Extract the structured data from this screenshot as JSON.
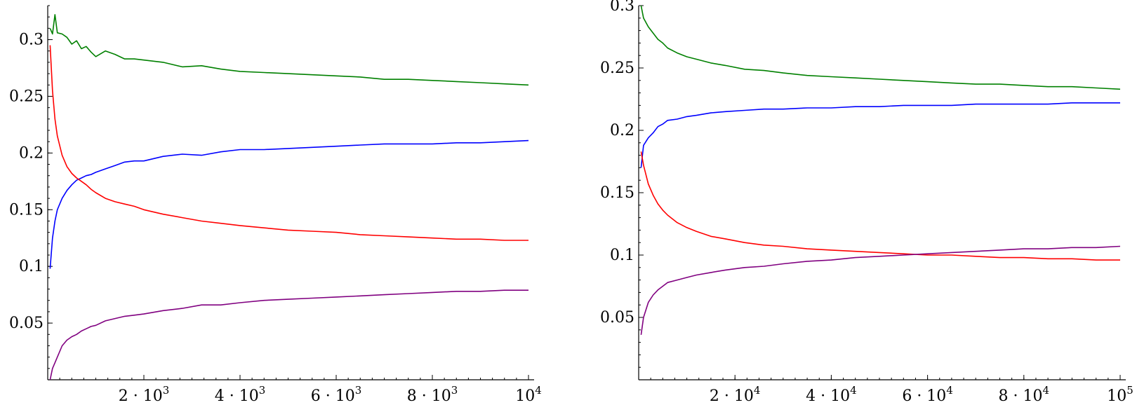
{
  "chart_data": [
    {
      "type": "line",
      "xlim": [
        0,
        10000
      ],
      "ylim": [
        0,
        0.33
      ],
      "x_ticks": [
        {
          "value": 2000,
          "mantissa": "2",
          "exp": "3"
        },
        {
          "value": 4000,
          "mantissa": "4",
          "exp": "3"
        },
        {
          "value": 6000,
          "mantissa": "6",
          "exp": "3"
        },
        {
          "value": 8000,
          "mantissa": "8",
          "exp": "3"
        },
        {
          "value": 10000,
          "mantissa": "",
          "exp": "4"
        }
      ],
      "y_ticks": [
        {
          "value": 0.05,
          "label": "0.05"
        },
        {
          "value": 0.1,
          "label": "0.1"
        },
        {
          "value": 0.15,
          "label": "0.15"
        },
        {
          "value": 0.2,
          "label": "0.2"
        },
        {
          "value": 0.25,
          "label": "0.25"
        },
        {
          "value": 0.3,
          "label": "0.3"
        }
      ],
      "series": [
        {
          "color": "#008000",
          "x": [
            50,
            100,
            150,
            200,
            300,
            400,
            500,
            600,
            700,
            800,
            900,
            1000,
            1200,
            1400,
            1600,
            1800,
            2000,
            2400,
            2800,
            3200,
            3600,
            4000,
            4500,
            5000,
            5500,
            6000,
            6500,
            7000,
            7500,
            8000,
            8500,
            9000,
            9500,
            10000
          ],
          "y": [
            0.31,
            0.305,
            0.322,
            0.306,
            0.305,
            0.302,
            0.296,
            0.299,
            0.292,
            0.294,
            0.289,
            0.285,
            0.29,
            0.287,
            0.283,
            0.283,
            0.282,
            0.28,
            0.276,
            0.277,
            0.274,
            0.272,
            0.271,
            0.27,
            0.269,
            0.268,
            0.267,
            0.265,
            0.265,
            0.264,
            0.263,
            0.262,
            0.261,
            0.26
          ]
        },
        {
          "color": "#0000ff",
          "x": [
            50,
            100,
            150,
            200,
            300,
            400,
            500,
            600,
            700,
            800,
            900,
            1000,
            1200,
            1400,
            1600,
            1800,
            2000,
            2400,
            2800,
            3200,
            3600,
            4000,
            4500,
            5000,
            5500,
            6000,
            6500,
            7000,
            7500,
            8000,
            8500,
            9000,
            9500,
            10000
          ],
          "y": [
            0.098,
            0.125,
            0.14,
            0.15,
            0.16,
            0.167,
            0.172,
            0.176,
            0.178,
            0.18,
            0.181,
            0.183,
            0.186,
            0.189,
            0.192,
            0.193,
            0.193,
            0.197,
            0.199,
            0.198,
            0.201,
            0.203,
            0.203,
            0.204,
            0.205,
            0.206,
            0.207,
            0.208,
            0.208,
            0.208,
            0.209,
            0.209,
            0.21,
            0.211
          ]
        },
        {
          "color": "#ff0000",
          "x": [
            50,
            100,
            150,
            200,
            300,
            400,
            500,
            600,
            700,
            800,
            900,
            1000,
            1200,
            1400,
            1600,
            1800,
            2000,
            2400,
            2800,
            3200,
            3600,
            4000,
            4500,
            5000,
            5500,
            6000,
            6500,
            7000,
            7500,
            8000,
            8500,
            9000,
            9500,
            10000
          ],
          "y": [
            0.295,
            0.255,
            0.23,
            0.215,
            0.198,
            0.188,
            0.182,
            0.178,
            0.175,
            0.172,
            0.168,
            0.165,
            0.16,
            0.157,
            0.155,
            0.153,
            0.15,
            0.146,
            0.143,
            0.14,
            0.138,
            0.136,
            0.134,
            0.132,
            0.131,
            0.13,
            0.128,
            0.127,
            0.126,
            0.125,
            0.124,
            0.124,
            0.123,
            0.123
          ]
        },
        {
          "color": "#800080",
          "x": [
            50,
            100,
            150,
            200,
            300,
            400,
            500,
            600,
            700,
            800,
            900,
            1000,
            1200,
            1400,
            1600,
            1800,
            2000,
            2400,
            2800,
            3200,
            3600,
            4000,
            4500,
            5000,
            5500,
            6000,
            6500,
            7000,
            7500,
            8000,
            8500,
            9000,
            9500,
            10000
          ],
          "y": [
            0.0,
            0.01,
            0.015,
            0.02,
            0.03,
            0.035,
            0.038,
            0.04,
            0.043,
            0.045,
            0.047,
            0.048,
            0.052,
            0.054,
            0.056,
            0.057,
            0.058,
            0.061,
            0.063,
            0.066,
            0.066,
            0.068,
            0.07,
            0.071,
            0.072,
            0.073,
            0.074,
            0.075,
            0.076,
            0.077,
            0.078,
            0.078,
            0.079,
            0.079
          ]
        }
      ]
    },
    {
      "type": "line",
      "xlim": [
        0,
        100000
      ],
      "ylim": [
        0,
        0.3
      ],
      "x_ticks": [
        {
          "value": 20000,
          "mantissa": "2",
          "exp": "4"
        },
        {
          "value": 40000,
          "mantissa": "4",
          "exp": "4"
        },
        {
          "value": 60000,
          "mantissa": "6",
          "exp": "4"
        },
        {
          "value": 80000,
          "mantissa": "8",
          "exp": "4"
        },
        {
          "value": 100000,
          "mantissa": "",
          "exp": "5"
        }
      ],
      "y_ticks": [
        {
          "value": 0.05,
          "label": "0.05"
        },
        {
          "value": 0.1,
          "label": "0.1"
        },
        {
          "value": 0.15,
          "label": "0.15"
        },
        {
          "value": 0.2,
          "label": "0.2"
        },
        {
          "value": 0.25,
          "label": "0.25"
        },
        {
          "value": 0.3,
          "label": "0.3"
        }
      ],
      "series": [
        {
          "color": "#008000",
          "x": [
            500,
            1000,
            2000,
            3000,
            4000,
            5000,
            6000,
            8000,
            10000,
            12000,
            15000,
            18000,
            22000,
            26000,
            30000,
            35000,
            40000,
            45000,
            50000,
            55000,
            60000,
            65000,
            70000,
            75000,
            80000,
            85000,
            90000,
            95000,
            100000
          ],
          "y": [
            0.3,
            0.29,
            0.283,
            0.278,
            0.273,
            0.27,
            0.266,
            0.262,
            0.259,
            0.257,
            0.254,
            0.252,
            0.249,
            0.248,
            0.246,
            0.244,
            0.243,
            0.242,
            0.241,
            0.24,
            0.239,
            0.238,
            0.237,
            0.237,
            0.236,
            0.235,
            0.235,
            0.234,
            0.233
          ]
        },
        {
          "color": "#0000ff",
          "x": [
            500,
            1000,
            2000,
            3000,
            4000,
            5000,
            6000,
            8000,
            10000,
            12000,
            15000,
            18000,
            22000,
            26000,
            30000,
            35000,
            40000,
            45000,
            50000,
            55000,
            60000,
            65000,
            70000,
            75000,
            80000,
            85000,
            90000,
            95000,
            100000
          ],
          "y": [
            0.17,
            0.188,
            0.194,
            0.198,
            0.203,
            0.205,
            0.208,
            0.209,
            0.211,
            0.212,
            0.214,
            0.215,
            0.216,
            0.217,
            0.217,
            0.218,
            0.218,
            0.219,
            0.219,
            0.22,
            0.22,
            0.22,
            0.221,
            0.221,
            0.221,
            0.221,
            0.222,
            0.222,
            0.222
          ]
        },
        {
          "color": "#ff0000",
          "x": [
            500,
            1000,
            2000,
            3000,
            4000,
            5000,
            6000,
            8000,
            10000,
            12000,
            15000,
            18000,
            22000,
            26000,
            30000,
            35000,
            40000,
            45000,
            50000,
            55000,
            60000,
            65000,
            70000,
            75000,
            80000,
            85000,
            90000,
            95000,
            100000
          ],
          "y": [
            0.183,
            0.172,
            0.157,
            0.148,
            0.141,
            0.136,
            0.132,
            0.126,
            0.122,
            0.119,
            0.115,
            0.113,
            0.11,
            0.108,
            0.107,
            0.105,
            0.104,
            0.103,
            0.102,
            0.101,
            0.1,
            0.1,
            0.099,
            0.098,
            0.098,
            0.097,
            0.097,
            0.096,
            0.096
          ]
        },
        {
          "color": "#800080",
          "x": [
            500,
            1000,
            2000,
            3000,
            4000,
            5000,
            6000,
            8000,
            10000,
            12000,
            15000,
            18000,
            22000,
            26000,
            30000,
            35000,
            40000,
            45000,
            50000,
            55000,
            60000,
            65000,
            70000,
            75000,
            80000,
            85000,
            90000,
            95000,
            100000
          ],
          "y": [
            0.036,
            0.05,
            0.062,
            0.068,
            0.072,
            0.075,
            0.078,
            0.08,
            0.082,
            0.084,
            0.086,
            0.088,
            0.09,
            0.091,
            0.093,
            0.095,
            0.096,
            0.098,
            0.099,
            0.1,
            0.101,
            0.102,
            0.103,
            0.104,
            0.105,
            0.105,
            0.106,
            0.106,
            0.107
          ]
        }
      ]
    }
  ]
}
